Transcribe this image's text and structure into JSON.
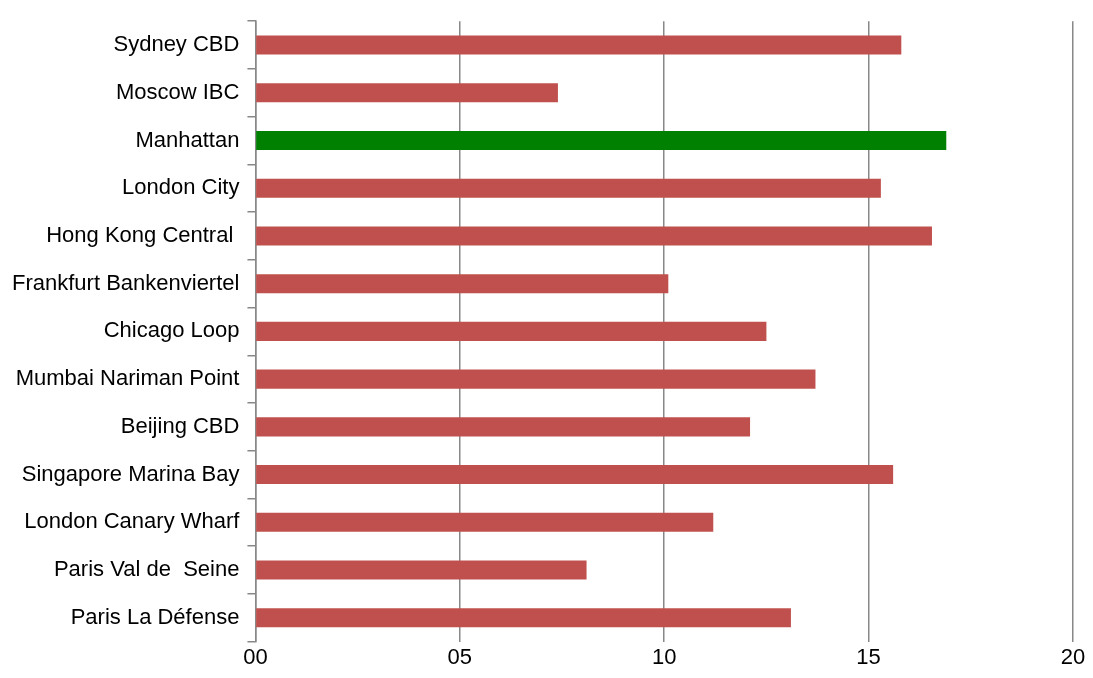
{
  "chart_data": {
    "type": "bar",
    "orientation": "horizontal",
    "categories": [
      "Sydney CBD",
      "Moscow IBC",
      "Manhattan",
      "London City",
      "Hong Kong Central ",
      "Frankfurt Bankenviertel",
      "Chicago Loop",
      "Mumbai Nariman Point",
      "Beijing CBD",
      "Singapore Marina Bay",
      "London Canary Wharf",
      "Paris Val de  Seine",
      "Paris La Défense"
    ],
    "values": [
      15.8,
      7.4,
      16.9,
      15.3,
      16.55,
      10.1,
      12.5,
      13.7,
      12.1,
      15.6,
      11.2,
      8.1,
      13.1
    ],
    "colors": [
      "#c0504d",
      "#c0504d",
      "#008000",
      "#c0504d",
      "#c0504d",
      "#c0504d",
      "#c0504d",
      "#c0504d",
      "#c0504d",
      "#c0504d",
      "#c0504d",
      "#c0504d",
      "#c0504d"
    ],
    "xlim": [
      0,
      20
    ],
    "xticks": [
      {
        "value": 0,
        "label": "00"
      },
      {
        "value": 5,
        "label": "05"
      },
      10,
      15,
      20
    ],
    "grid": "x",
    "legend": false
  }
}
